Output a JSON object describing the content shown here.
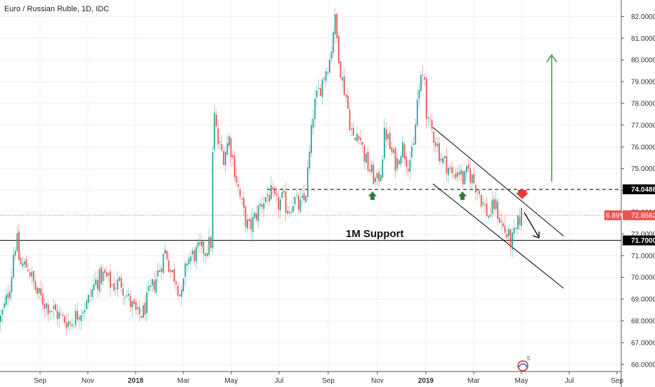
{
  "chart_data": {
    "type": "candlestick",
    "title": "Euro / Russian Ruble, 1D, IDC",
    "y_axis": {
      "ticks": [
        "82.0000",
        "81.0000",
        "80.0000",
        "79.0000",
        "78.0000",
        "77.0000",
        "76.0000",
        "75.0000",
        "74.0000",
        "73.0000",
        "72.0000",
        "71.0000",
        "70.0000",
        "69.0000",
        "68.0000",
        "67.0000",
        "66.0000"
      ],
      "range": [
        65.8,
        82.4
      ],
      "position": "right"
    },
    "x_axis": {
      "ticks": [
        "Sep",
        "Nov",
        "2018",
        "Mar",
        "May",
        "Jul",
        "Sep",
        "Nov",
        "2019",
        "Mar",
        "May",
        "Jul",
        "Sep"
      ],
      "bold_ticks": [
        "2018",
        "2019"
      ]
    },
    "price_path": [
      [
        0,
        68.0
      ],
      [
        8,
        68.8
      ],
      [
        16,
        70.0
      ],
      [
        20,
        71.4
      ],
      [
        24,
        71.7
      ],
      [
        28,
        70.6
      ],
      [
        40,
        70.5
      ],
      [
        52,
        69.3
      ],
      [
        64,
        68.8
      ],
      [
        76,
        68.5
      ],
      [
        88,
        68.1
      ],
      [
        100,
        67.9
      ],
      [
        112,
        68.4
      ],
      [
        124,
        68.8
      ],
      [
        136,
        69.8
      ],
      [
        148,
        70.1
      ],
      [
        160,
        69.6
      ],
      [
        172,
        69.8
      ],
      [
        184,
        68.9
      ],
      [
        196,
        68.2
      ],
      [
        204,
        68.4
      ],
      [
        212,
        69.2
      ],
      [
        220,
        69.8
      ],
      [
        228,
        70.5
      ],
      [
        236,
        71.3
      ],
      [
        242,
        70.3
      ],
      [
        250,
        70.0
      ],
      [
        258,
        69.0
      ],
      [
        266,
        70.8
      ],
      [
        274,
        71.0
      ],
      [
        282,
        71.2
      ],
      [
        292,
        71.3
      ],
      [
        300,
        71.6
      ],
      [
        304,
        77.7
      ],
      [
        310,
        76.2
      ],
      [
        318,
        75.6
      ],
      [
        326,
        76.4
      ],
      [
        332,
        75.3
      ],
      [
        340,
        73.9
      ],
      [
        346,
        73.0
      ],
      [
        354,
        72.2
      ],
      [
        362,
        72.7
      ],
      [
        370,
        73.3
      ],
      [
        378,
        73.7
      ],
      [
        386,
        73.8
      ],
      [
        394,
        73.3
      ],
      [
        402,
        73.6
      ],
      [
        410,
        73.1
      ],
      [
        418,
        73.6
      ],
      [
        426,
        73.2
      ],
      [
        434,
        73.6
      ],
      [
        440,
        75.5
      ],
      [
        446,
        77.7
      ],
      [
        452,
        78.4
      ],
      [
        458,
        79.0
      ],
      [
        464,
        79.6
      ],
      [
        470,
        80.1
      ],
      [
        476,
        82.0
      ],
      [
        480,
        80.8
      ],
      [
        486,
        79.2
      ],
      [
        492,
        78.4
      ],
      [
        498,
        77.1
      ],
      [
        504,
        76.1
      ],
      [
        510,
        76.9
      ],
      [
        516,
        75.9
      ],
      [
        522,
        75.2
      ],
      [
        530,
        74.7
      ],
      [
        536,
        74.3
      ],
      [
        542,
        75.0
      ],
      [
        548,
        76.8
      ],
      [
        556,
        75.8
      ],
      [
        564,
        75.2
      ],
      [
        572,
        76.1
      ],
      [
        580,
        75.3
      ],
      [
        588,
        75.7
      ],
      [
        594,
        78.2
      ],
      [
        600,
        79.1
      ],
      [
        604,
        79.3
      ],
      [
        608,
        77.0
      ],
      [
        614,
        76.8
      ],
      [
        620,
        76.3
      ],
      [
        628,
        75.4
      ],
      [
        636,
        75.2
      ],
      [
        644,
        74.6
      ],
      [
        652,
        75.0
      ],
      [
        660,
        74.4
      ],
      [
        666,
        74.9
      ],
      [
        674,
        74.4
      ],
      [
        680,
        74.1
      ],
      [
        688,
        73.3
      ],
      [
        696,
        72.8
      ],
      [
        704,
        73.4
      ],
      [
        712,
        72.6
      ],
      [
        720,
        72.0
      ],
      [
        728,
        71.6
      ],
      [
        734,
        72.1
      ],
      [
        740,
        72.8
      ],
      [
        744,
        73.0
      ]
    ],
    "levels": [
      {
        "label": "74.0488",
        "value": 74.0488,
        "style": "dashed"
      },
      {
        "label": "71.7000",
        "value": 71.7,
        "style": "solid"
      }
    ],
    "last_price": {
      "label": "72.8582",
      "change_label": "6.89%",
      "value": 72.8582
    },
    "channel": {
      "upper": [
        {
          "x": "2019",
          "y": 76.9
        },
        {
          "x": "Sep",
          "y": 71.9
        }
      ],
      "lower": [
        {
          "x": "2019",
          "y": 74.3
        },
        {
          "x": "Sep",
          "y": 69.5
        }
      ]
    },
    "annotations": {
      "support_label": "1M Support",
      "badge": "5"
    },
    "colors": {
      "up": "#26a69a",
      "down": "#ef5350",
      "annotation_green": "#2e7d32",
      "annotation_red": "#e53935",
      "last_price_box": "#ef5350",
      "level_box": "#000000",
      "grid": "#eef1f5"
    },
    "grid": true,
    "legend": "top-left"
  }
}
